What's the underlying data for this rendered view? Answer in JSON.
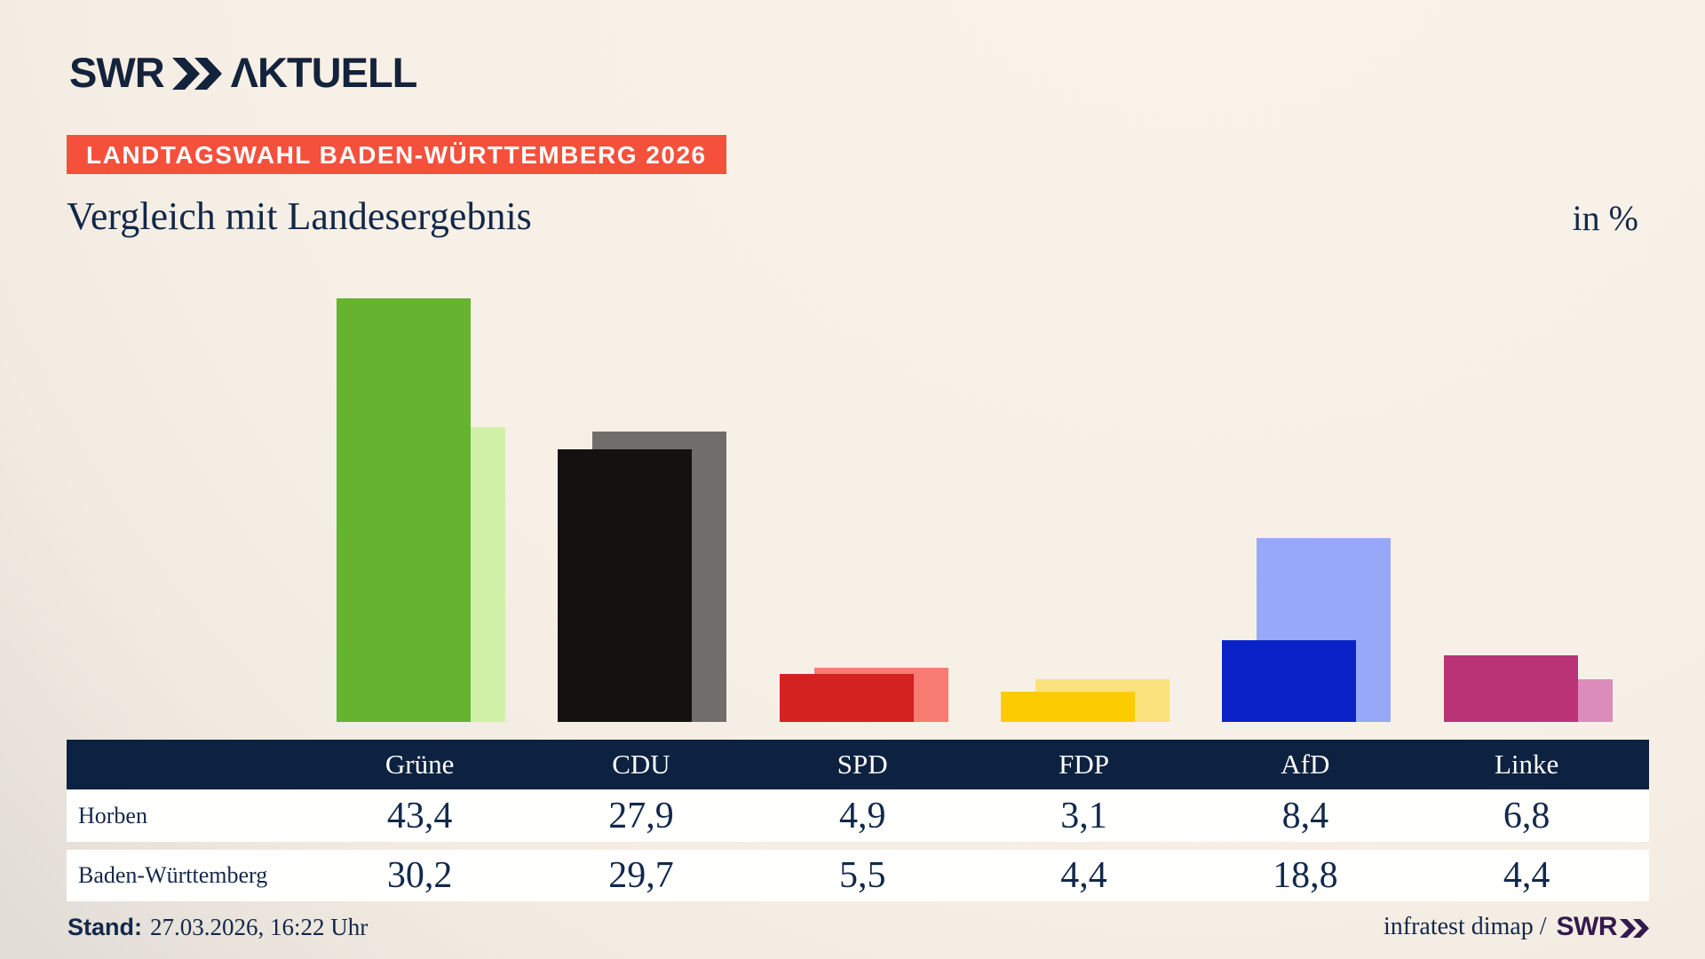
{
  "header": {
    "brand": "SWR",
    "brand_suffix": "ΛKTUELL",
    "banner": "LANDTAGSWAHL BADEN-WÜRTTEMBERG 2026"
  },
  "chart_data": {
    "type": "bar",
    "title": "Vergleich mit Landesergebnis",
    "unit": "in %",
    "categories": [
      "Grüne",
      "CDU",
      "SPD",
      "FDP",
      "AfD",
      "Linke"
    ],
    "series": [
      {
        "name": "Horben",
        "values": [
          43.4,
          27.9,
          4.9,
          3.1,
          8.4,
          6.8
        ]
      },
      {
        "name": "Baden-Württemberg",
        "values": [
          30.2,
          29.7,
          5.5,
          4.4,
          18.8,
          4.4
        ]
      }
    ],
    "colors": {
      "front": [
        "#65b32e",
        "#141210",
        "#d42221",
        "#fccb00",
        "#0a23c8",
        "#bb3377"
      ],
      "back": [
        "#cff0a6",
        "#706d6b",
        "#f87b72",
        "#fbe17c",
        "#98a8f8",
        "#db8cba"
      ]
    },
    "ylim": [
      0,
      45
    ],
    "grid": false,
    "legend": "table-below"
  },
  "table": {
    "columns": [
      "Grüne",
      "CDU",
      "SPD",
      "FDP",
      "AfD",
      "Linke"
    ],
    "rows": [
      {
        "label": "Horben",
        "values": [
          "43,4",
          "27,9",
          "4,9",
          "3,1",
          "8,4",
          "6,8"
        ]
      },
      {
        "label": "Baden-Württemberg",
        "values": [
          "30,2",
          "29,7",
          "5,5",
          "4,4",
          "18,8",
          "4,4"
        ]
      }
    ]
  },
  "footer": {
    "stand_label": "Stand:",
    "stand_value": "27.03.2026, 16:22 Uhr",
    "source_text": "infratest dimap /",
    "source_brand": "SWR"
  },
  "colors": {
    "accent_red": "#f4503c",
    "navy": "#13284a",
    "table_header_navy": "#0d2240",
    "brand_purple": "#34194d"
  }
}
